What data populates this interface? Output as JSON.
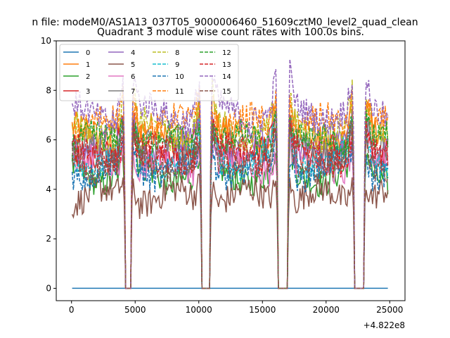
{
  "figure": {
    "suptitle": "n file: modeM0/AS1A13_037T05_9000006460_51609cztM0_level2_quad_clean"
  },
  "chart_data": {
    "type": "line",
    "title": "Quadrant 3 module wise count rates with 100.0s bins.",
    "xlabel": "",
    "ylabel": "",
    "x_offset_label": "+4.822e8",
    "xlim": [
      -1200,
      26200
    ],
    "ylim": [
      -0.5,
      10
    ],
    "xticks": [
      {
        "value": 0,
        "label": "0"
      },
      {
        "value": 5000,
        "label": "5000"
      },
      {
        "value": 10000,
        "label": "10000"
      },
      {
        "value": 15000,
        "label": "15000"
      },
      {
        "value": 20000,
        "label": "20000"
      },
      {
        "value": 25000,
        "label": "25000"
      }
    ],
    "yticks": [
      {
        "value": 0,
        "label": "0"
      },
      {
        "value": 2,
        "label": "2"
      },
      {
        "value": 4,
        "label": "4"
      },
      {
        "value": 6,
        "label": "6"
      },
      {
        "value": 8,
        "label": "8"
      },
      {
        "value": 10,
        "label": "10"
      }
    ],
    "grid": false,
    "legend_position": "top-left",
    "legend_columns": 4,
    "x_range": [
      50,
      24850
    ],
    "bin_size_s": 100,
    "gaps": [
      [
        4250,
        4650
      ],
      [
        10250,
        10850
      ],
      [
        16250,
        16950
      ],
      [
        22250,
        22950
      ]
    ],
    "series": [
      {
        "name": "0",
        "color": "#1f77b4",
        "dashed": false,
        "level": 0.0
      },
      {
        "name": "1",
        "color": "#ff7f0e",
        "dashed": false,
        "level": 6.2
      },
      {
        "name": "2",
        "color": "#2ca02c",
        "dashed": false,
        "level": 4.6
      },
      {
        "name": "3",
        "color": "#d62728",
        "dashed": false,
        "level": 5.5
      },
      {
        "name": "4",
        "color": "#9467bd",
        "dashed": false,
        "level": 5.8
      },
      {
        "name": "5",
        "color": "#8c564b",
        "dashed": false,
        "level": 3.7
      },
      {
        "name": "6",
        "color": "#e377c2",
        "dashed": false,
        "level": 5.0
      },
      {
        "name": "7",
        "color": "#7f7f7f",
        "dashed": false,
        "level": 5.6
      },
      {
        "name": "8",
        "color": "#bcbd22",
        "dashed": true,
        "level": 6.4
      },
      {
        "name": "9",
        "color": "#17becf",
        "dashed": true,
        "level": 5.2
      },
      {
        "name": "10",
        "color": "#1f77b4",
        "dashed": true,
        "level": 4.8
      },
      {
        "name": "11",
        "color": "#ff7f0e",
        "dashed": true,
        "level": 6.6
      },
      {
        "name": "12",
        "color": "#2ca02c",
        "dashed": true,
        "level": 5.9
      },
      {
        "name": "13",
        "color": "#d62728",
        "dashed": true,
        "level": 5.4
      },
      {
        "name": "14",
        "color": "#9467bd",
        "dashed": true,
        "level": 7.1
      },
      {
        "name": "15",
        "color": "#8c564b",
        "dashed": true,
        "level": 5.1
      }
    ]
  }
}
